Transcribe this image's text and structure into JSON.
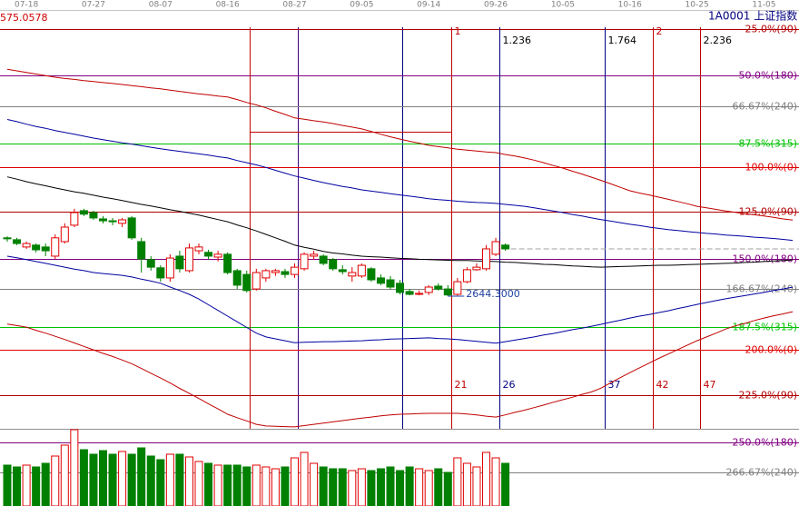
{
  "header": {
    "top_price": "575.0578",
    "symbol": "1A0001 上证指数"
  },
  "chart_data": [
    {
      "type": "candlestick",
      "categories": [
        null,
        null,
        "07-18",
        null,
        null,
        null,
        null,
        null,
        null,
        "07-27",
        null,
        null,
        null,
        null,
        null,
        null,
        "08-07",
        null,
        null,
        null,
        null,
        null,
        null,
        "08-16",
        null,
        null,
        null,
        null,
        null,
        null,
        "08-27",
        null,
        null,
        null,
        null,
        null,
        null,
        "09-05",
        null,
        null,
        null,
        null,
        null,
        null,
        "09-14",
        null,
        null,
        null,
        null,
        null,
        null,
        "09-26",
        null,
        null,
        null,
        null,
        null,
        null,
        "10-05",
        null,
        null,
        null,
        null,
        null,
        null,
        "10-16",
        null,
        null,
        null,
        null,
        null,
        null,
        "10-25",
        null,
        null,
        null,
        null,
        null,
        null,
        "11-05",
        null,
        null,
        null
      ],
      "open": [
        2829,
        2823,
        2800,
        2806,
        2800,
        2771,
        2817,
        2869,
        2915,
        2909,
        2889,
        2883,
        2875,
        2892,
        2817,
        2760,
        2734,
        2702,
        2771,
        2725,
        2788,
        2783,
        2768,
        2777,
        2725,
        2713,
        2667,
        2702,
        2719,
        2722,
        2713,
        2731,
        2771,
        2771,
        2760,
        2728,
        2708,
        2708,
        2731,
        2702,
        2696,
        2685,
        2659,
        2650,
        2656,
        2676,
        2667,
        2650,
        2690,
        2728,
        2731,
        2777,
        2806,
        null,
        null,
        null,
        null,
        null,
        null,
        null,
        null,
        null,
        null,
        null,
        null,
        null,
        null,
        null,
        null,
        null,
        null,
        null,
        null,
        null,
        null,
        null,
        null,
        null,
        null,
        null,
        null,
        null,
        null
      ],
      "high": [
        2834,
        2829,
        2817,
        2811,
        2811,
        2840,
        2875,
        2921,
        2921,
        2915,
        2898,
        2892,
        2892,
        2898,
        2829,
        2771,
        2742,
        2777,
        2788,
        2811,
        2811,
        2791,
        2788,
        2783,
        2731,
        2725,
        2731,
        2731,
        2731,
        2731,
        2748,
        2783,
        2788,
        2777,
        2765,
        2742,
        2736,
        2748,
        2736,
        2713,
        2708,
        2696,
        2667,
        2662,
        2679,
        2685,
        2679,
        2702,
        2736,
        2748,
        2806,
        2829,
        2811,
        null,
        null,
        null,
        null,
        null,
        null,
        null,
        null,
        null,
        null,
        null,
        null,
        null,
        null,
        null,
        null,
        null,
        null,
        null,
        null,
        null,
        null,
        null,
        null,
        null,
        null,
        null,
        null,
        null,
        null
      ],
      "low": [
        2817,
        2806,
        2794,
        2783,
        2771,
        2762,
        2811,
        2863,
        2898,
        2886,
        2875,
        2869,
        2863,
        2823,
        2719,
        2725,
        2690,
        2690,
        2719,
        2719,
        2777,
        2760,
        2754,
        2713,
        2667,
        2656,
        2662,
        2690,
        2708,
        2702,
        2702,
        2725,
        2760,
        2742,
        2725,
        2713,
        2690,
        2702,
        2690,
        2679,
        2667,
        2650,
        2647,
        2647,
        2648,
        2662,
        2644.3,
        2646,
        2685,
        2725,
        2725,
        2771,
        2788,
        null,
        null,
        null,
        null,
        null,
        null,
        null,
        null,
        null,
        null,
        null,
        null,
        null,
        null,
        null,
        null,
        null,
        null,
        null,
        null,
        null,
        null,
        null,
        null,
        null,
        null,
        null,
        null,
        null,
        null
      ],
      "close": [
        2826,
        2811,
        2811,
        2791,
        2788,
        2829,
        2863,
        2909,
        2904,
        2892,
        2883,
        2880,
        2886,
        2829,
        2762,
        2736,
        2702,
        2765,
        2731,
        2797,
        2800,
        2771,
        2777,
        2719,
        2679,
        2662,
        2719,
        2725,
        2725,
        2713,
        2736,
        2777,
        2777,
        2748,
        2731,
        2722,
        2719,
        2742,
        2696,
        2685,
        2673,
        2656,
        2650,
        2653,
        2673,
        2667,
        2648,
        2690,
        2728,
        2736,
        2794,
        2817,
        2794,
        null,
        null,
        null,
        null,
        null,
        null,
        null,
        null,
        null,
        null,
        null,
        null,
        null,
        null,
        null,
        null,
        null,
        null,
        null,
        null,
        null,
        null,
        null,
        null,
        null,
        null,
        null,
        null,
        null,
        null
      ],
      "up_color": "#e00000",
      "down_color": "#008000",
      "ylim": [
        2224,
        3548
      ],
      "low_label": {
        "value": 2644.3,
        "label": "2644.3000"
      },
      "series": [
        {
          "color": "#c00000",
          "values": [
            3363,
            3358,
            3353,
            3348,
            3343,
            3338,
            3334,
            3331,
            3327,
            3324,
            3321,
            3318,
            3315,
            3311,
            3308,
            3304,
            3301,
            3297,
            3293,
            3289,
            3285,
            3282,
            3278,
            3275,
            3267,
            3258,
            3250,
            3241,
            3230,
            3220,
            3209,
            3205,
            3200,
            3196,
            3191,
            3185,
            3180,
            3174,
            3166,
            3157,
            3149,
            3142,
            3135,
            3129,
            3122,
            3118,
            3114,
            3110,
            3107,
            3104,
            3101,
            3099,
            3093,
            3088,
            3082,
            3075,
            3067,
            3058,
            3050,
            3040,
            3031,
            3021,
            3011,
            3000,
            2989,
            2978,
            2971,
            2965,
            2958,
            2951,
            2944,
            2937,
            2929,
            2924,
            2919,
            2914,
            2910,
            2906,
            2902,
            2898,
            2894,
            2889,
            2885
          ]
        },
        {
          "color": "#0000a0",
          "values": [
            3204,
            3197,
            3189,
            3182,
            3176,
            3169,
            3163,
            3157,
            3151,
            3145,
            3140,
            3135,
            3130,
            3126,
            3121,
            3116,
            3111,
            3107,
            3103,
            3099,
            3095,
            3091,
            3086,
            3082,
            3074,
            3067,
            3060,
            3052,
            3043,
            3034,
            3025,
            3018,
            3011,
            3004,
            2998,
            2992,
            2987,
            2981,
            2977,
            2973,
            2969,
            2965,
            2961,
            2957,
            2953,
            2950,
            2948,
            2945,
            2943,
            2941,
            2940,
            2938,
            2935,
            2932,
            2929,
            2924,
            2919,
            2914,
            2909,
            2903,
            2898,
            2892,
            2887,
            2882,
            2877,
            2872,
            2868,
            2863,
            2859,
            2855,
            2852,
            2849,
            2846,
            2843,
            2841,
            2838,
            2836,
            2834,
            2831,
            2829,
            2827,
            2824,
            2821
          ]
        },
        {
          "color": "#000000",
          "values": [
            3022,
            3015,
            3007,
            3000,
            2994,
            2987,
            2981,
            2975,
            2970,
            2964,
            2958,
            2953,
            2947,
            2941,
            2935,
            2930,
            2924,
            2918,
            2913,
            2907,
            2901,
            2894,
            2887,
            2880,
            2870,
            2861,
            2851,
            2840,
            2829,
            2818,
            2806,
            2799,
            2793,
            2786,
            2781,
            2778,
            2774,
            2771,
            2769,
            2768,
            2766,
            2764,
            2763,
            2761,
            2760,
            2759,
            2758,
            2757,
            2757,
            2756,
            2755,
            2754,
            2752,
            2751,
            2749,
            2747,
            2745,
            2744,
            2742,
            2740,
            2739,
            2737,
            2736,
            2737,
            2738,
            2739,
            2740,
            2741,
            2742,
            2742,
            2743,
            2744,
            2745,
            2746,
            2747,
            2748,
            2749,
            2751,
            2752,
            2754,
            2756,
            2757,
            2759
          ]
        },
        {
          "color": "#0000a0",
          "values": [
            2771,
            2766,
            2760,
            2754,
            2748,
            2742,
            2736,
            2730,
            2725,
            2719,
            2716,
            2713,
            2710,
            2705,
            2698,
            2692,
            2685,
            2673,
            2662,
            2650,
            2635,
            2617,
            2599,
            2581,
            2563,
            2545,
            2527,
            2515,
            2509,
            2503,
            2497,
            2498,
            2499,
            2500,
            2500,
            2501,
            2502,
            2503,
            2505,
            2506,
            2508,
            2509,
            2510,
            2511,
            2512,
            2510,
            2509,
            2507,
            2504,
            2501,
            2498,
            2495,
            2500,
            2505,
            2510,
            2515,
            2521,
            2526,
            2532,
            2538,
            2543,
            2549,
            2555,
            2562,
            2568,
            2575,
            2581,
            2586,
            2592,
            2598,
            2605,
            2611,
            2618,
            2624,
            2630,
            2636,
            2641,
            2646,
            2651,
            2656,
            2662,
            2667,
            2673
          ]
        },
        {
          "color": "#c00000",
          "values": [
            2556,
            2551,
            2546,
            2536,
            2527,
            2517,
            2507,
            2496,
            2485,
            2474,
            2463,
            2453,
            2442,
            2430,
            2415,
            2400,
            2385,
            2369,
            2352,
            2336,
            2320,
            2303,
            2287,
            2270,
            2259,
            2249,
            2238,
            2233,
            2232,
            2231,
            2230,
            2234,
            2238,
            2242,
            2246,
            2250,
            2254,
            2258,
            2261,
            2265,
            2268,
            2270,
            2271,
            2272,
            2273,
            2273,
            2273,
            2273,
            2271,
            2268,
            2264,
            2261,
            2268,
            2276,
            2283,
            2291,
            2299,
            2308,
            2316,
            2324,
            2333,
            2341,
            2353,
            2370,
            2386,
            2402,
            2417,
            2432,
            2447,
            2461,
            2475,
            2489,
            2503,
            2515,
            2527,
            2540,
            2550,
            2558,
            2567,
            2575,
            2582,
            2588,
            2595
          ]
        }
      ],
      "levels": [
        {
          "label": "25.0%(90)",
          "value": 3491,
          "color": "#b00000"
        },
        {
          "label": "50.0%(180)",
          "value": 3344,
          "color": "#800080"
        },
        {
          "label": "66.67%(240)",
          "value": 3246,
          "color": "#808080"
        },
        {
          "label": "87.5%(315)",
          "value": 3128,
          "color": "#00c000"
        },
        {
          "label": "100.0%(0)",
          "value": 3053,
          "color": "#e00000"
        },
        {
          "label": "125.0%(90)",
          "value": 2912,
          "color": "#b00000"
        },
        {
          "label": "150.0%(180)",
          "value": 2762,
          "color": "#800080"
        },
        {
          "label": "166.67%(240)",
          "value": 2667,
          "color": "#808080"
        },
        {
          "label": "187.5%(315)",
          "value": 2546,
          "color": "#00c000"
        },
        {
          "label": "200.0%(0)",
          "value": 2474,
          "color": "#e00000"
        },
        {
          "label": "225.0%(90)",
          "value": 2330,
          "color": "#b00000"
        },
        {
          "label": "250.0%(180)",
          "value": 2181,
          "color": "#800080"
        },
        {
          "label": "266.67%(240)",
          "value": 2086,
          "color": "#808080"
        }
      ],
      "time_ratios": [
        {
          "ratio": 1,
          "count": 21,
          "color": "#c00000"
        },
        {
          "ratio": 1.236,
          "count": 26,
          "color": "#000080"
        },
        {
          "ratio": 1.764,
          "count": 37,
          "color": "#000080"
        },
        {
          "ratio": 2,
          "count": 42,
          "color": "#c00000"
        },
        {
          "ratio": 2.236,
          "count": 47,
          "color": "#c00000"
        }
      ]
    },
    {
      "type": "bar",
      "values": [
        45,
        43,
        45,
        43,
        47,
        55,
        67,
        84,
        62,
        57,
        61,
        57,
        60,
        57,
        64,
        55,
        51,
        57,
        57,
        54,
        49,
        47,
        45,
        45,
        45,
        43,
        45,
        43,
        41,
        43,
        53,
        59,
        47,
        43,
        41,
        41,
        39,
        41,
        39,
        41,
        43,
        39,
        43,
        41,
        39,
        41,
        37,
        53,
        47,
        43,
        59,
        53,
        47,
        null,
        null,
        null,
        null,
        null,
        null,
        null,
        null,
        null,
        null,
        null,
        null,
        null,
        null,
        null,
        null,
        null,
        null,
        null,
        null,
        null,
        null,
        null,
        null,
        null,
        null,
        null,
        null,
        null,
        null
      ],
      "ylim": [
        0,
        85
      ]
    }
  ]
}
